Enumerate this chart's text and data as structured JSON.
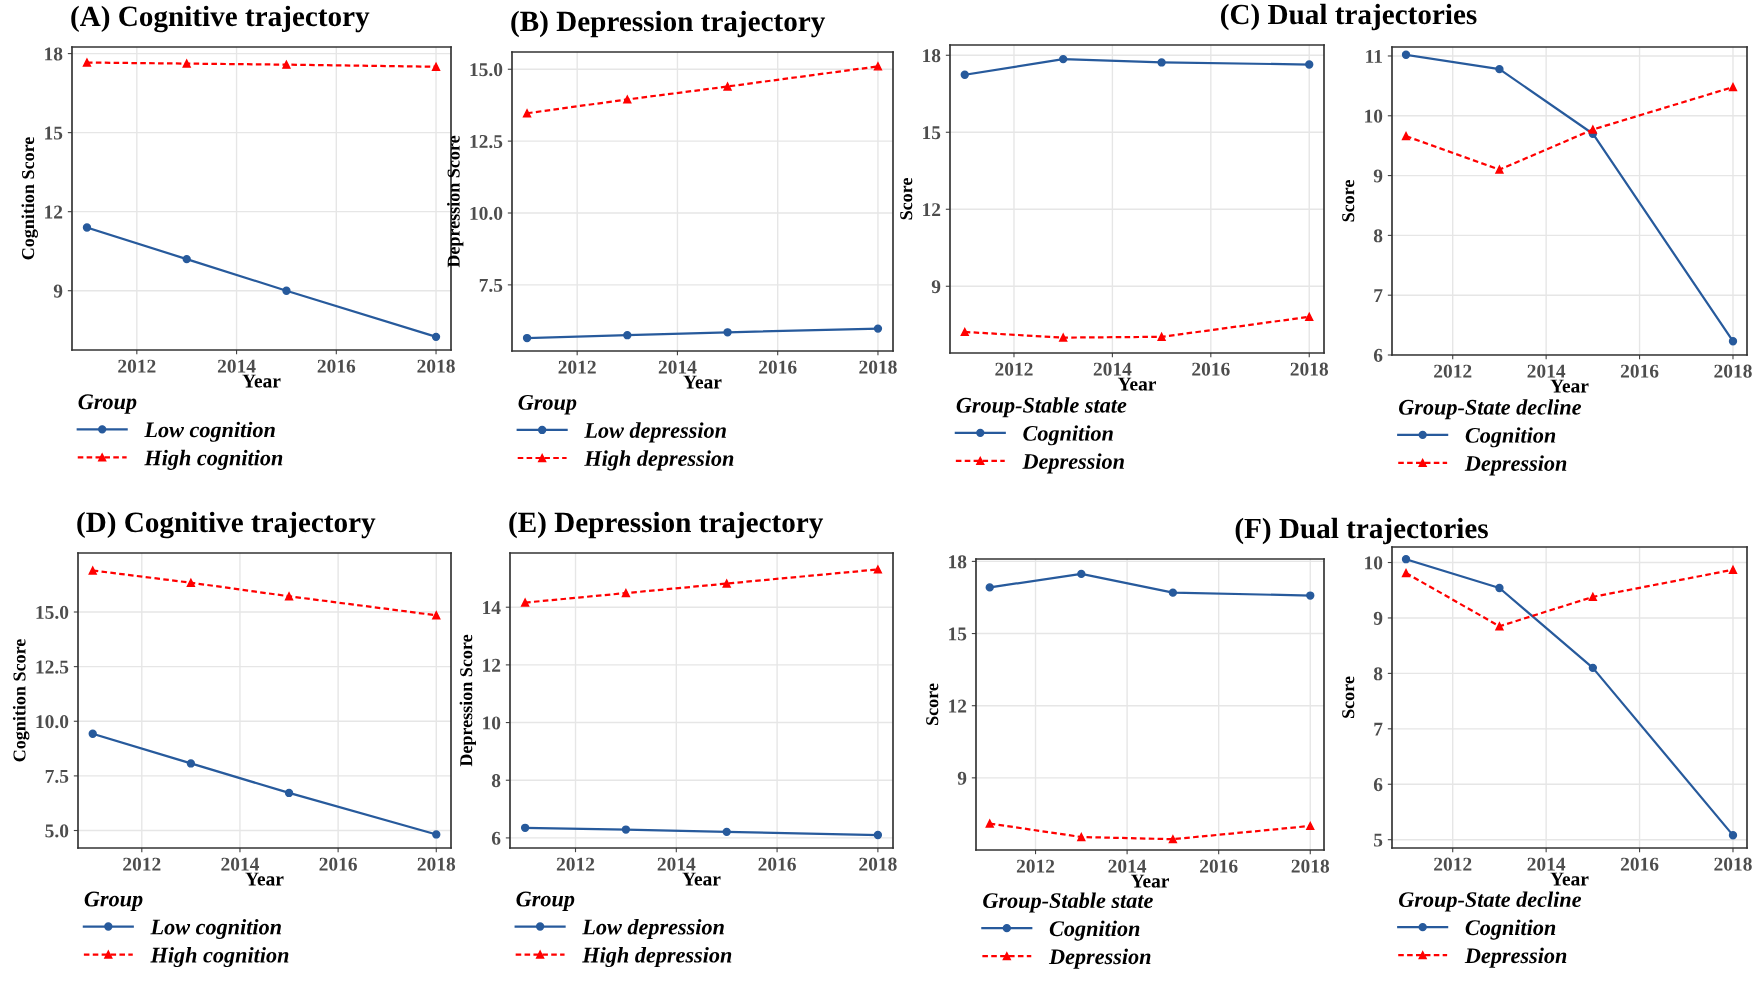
{
  "chart_data": [
    {
      "type": "line",
      "title": "(A) Cognitive trajectory",
      "xlabel": "Year",
      "ylabel": "Cognition Score",
      "legend_title": "Group",
      "legend": "bottom",
      "grid": true,
      "x": [
        2011,
        2013,
        2015,
        2018
      ],
      "xlim": [
        2010.7,
        2018.3
      ],
      "xticks": [
        2012,
        2014,
        2016,
        2018
      ],
      "ylim": [
        6.75,
        18.25
      ],
      "yticks": [
        9,
        12,
        15,
        18
      ],
      "series": [
        {
          "name": "Low cognition",
          "color": "#275a9c",
          "marker": "circle",
          "line_style": "solid",
          "values": [
            11.4,
            10.2,
            9.0,
            7.25
          ]
        },
        {
          "name": "High cognition",
          "color": "#ff0000",
          "marker": "triangle",
          "line_style": "dashed",
          "values": [
            17.66,
            17.62,
            17.58,
            17.5
          ]
        }
      ]
    },
    {
      "type": "line",
      "title": "(B) Depression trajectory",
      "xlabel": "Year",
      "ylabel": "Depression Score",
      "legend_title": "Group",
      "legend": "bottom",
      "grid": true,
      "x": [
        2011,
        2013,
        2015,
        2018
      ],
      "xlim": [
        2010.7,
        2018.3
      ],
      "xticks": [
        2012,
        2014,
        2016,
        2018
      ],
      "ylim": [
        5.2,
        15.6
      ],
      "yticks": [
        7.5,
        {
          "value": 10,
          "label": "10.0"
        },
        12.5,
        {
          "value": 15,
          "label": "15.0"
        }
      ],
      "series": [
        {
          "name": "Low depression",
          "color": "#275a9c",
          "marker": "circle",
          "line_style": "solid",
          "values": [
            5.65,
            5.75,
            5.85,
            5.98
          ]
        },
        {
          "name": "High depression",
          "color": "#ff0000",
          "marker": "triangle",
          "line_style": "dashed",
          "values": [
            13.47,
            13.95,
            14.4,
            15.1
          ]
        }
      ]
    },
    {
      "type": "line",
      "title": "(C) Dual trajectories",
      "xlabel": "Year",
      "ylabel": "Score",
      "legend_title": "Group-Stable state",
      "legend": "bottom",
      "grid": true,
      "x": [
        2011,
        2013,
        2015,
        2018
      ],
      "xlim": [
        2010.7,
        2018.3
      ],
      "xticks": [
        2012,
        2014,
        2016,
        2018
      ],
      "ylim": [
        6.4,
        18.4
      ],
      "yticks": [
        9,
        12,
        15,
        18
      ],
      "series": [
        {
          "name": "Cognition",
          "color": "#275a9c",
          "marker": "circle",
          "line_style": "solid",
          "values": [
            17.24,
            17.85,
            17.72,
            17.64
          ]
        },
        {
          "name": "Depression",
          "color": "#ff0000",
          "marker": "triangle",
          "line_style": "dashed",
          "values": [
            7.22,
            7.0,
            7.03,
            7.81
          ]
        }
      ]
    },
    {
      "type": "line",
      "xlabel": "Year",
      "ylabel": "Score",
      "legend_title": "Group-State decline",
      "legend": "bottom",
      "grid": true,
      "x": [
        2011,
        2013,
        2015,
        2018
      ],
      "xlim": [
        2010.7,
        2018.3
      ],
      "xticks": [
        2012,
        2014,
        2016,
        2018
      ],
      "ylim": [
        6.0,
        11.15
      ],
      "yticks": [
        6,
        7,
        8,
        9,
        10,
        11
      ],
      "series": [
        {
          "name": "Cognition",
          "color": "#275a9c",
          "marker": "circle",
          "line_style": "solid",
          "values": [
            11.02,
            10.78,
            9.7,
            6.23
          ]
        },
        {
          "name": "Depression",
          "color": "#ff0000",
          "marker": "triangle",
          "line_style": "dashed",
          "values": [
            9.66,
            9.1,
            9.77,
            10.48
          ]
        }
      ]
    },
    {
      "type": "line",
      "title": "(D) Cognitive trajectory",
      "xlabel": "Year",
      "ylabel": "Cognition Score",
      "legend_title": "Group",
      "legend": "bottom",
      "grid": true,
      "x": [
        2011,
        2013,
        2015,
        2018
      ],
      "xlim": [
        2010.7,
        2018.3
      ],
      "xticks": [
        2012,
        2014,
        2016,
        2018
      ],
      "ylim": [
        4.2,
        17.7
      ],
      "yticks": [
        {
          "value": 5,
          "label": "5.0"
        },
        7.5,
        {
          "value": 10,
          "label": "10.0"
        },
        12.5,
        {
          "value": 15,
          "label": "15.0"
        }
      ],
      "series": [
        {
          "name": "Low cognition",
          "color": "#275a9c",
          "marker": "circle",
          "line_style": "solid",
          "values": [
            9.43,
            8.07,
            6.72,
            4.82
          ]
        },
        {
          "name": "High cognition",
          "color": "#ff0000",
          "marker": "triangle",
          "line_style": "dashed",
          "values": [
            16.9,
            16.34,
            15.72,
            14.85
          ]
        }
      ]
    },
    {
      "type": "line",
      "title": "(E) Depression trajectory",
      "xlabel": "Year",
      "ylabel": "Depression Score",
      "legend_title": "Group",
      "legend": "bottom",
      "grid": true,
      "x": [
        2011,
        2013,
        2015,
        2018
      ],
      "xlim": [
        2010.7,
        2018.3
      ],
      "xticks": [
        2012,
        2014,
        2016,
        2018
      ],
      "ylim": [
        5.65,
        15.88
      ],
      "yticks": [
        6,
        8,
        10,
        12,
        14
      ],
      "series": [
        {
          "name": "Low depression",
          "color": "#275a9c",
          "marker": "circle",
          "line_style": "solid",
          "values": [
            6.35,
            6.29,
            6.21,
            6.1
          ]
        },
        {
          "name": "High depression",
          "color": "#ff0000",
          "marker": "triangle",
          "line_style": "dashed",
          "values": [
            14.16,
            14.49,
            14.82,
            15.31
          ]
        }
      ]
    },
    {
      "type": "line",
      "title": "(F) Dual trajectories",
      "xlabel": "Year",
      "ylabel": "Score",
      "legend_title": "Group-Stable state",
      "legend": "bottom",
      "grid": true,
      "x": [
        2011,
        2013,
        2015,
        2018
      ],
      "xlim": [
        2010.7,
        2018.3
      ],
      "xticks": [
        2012,
        2014,
        2016,
        2018
      ],
      "ylim": [
        6.0,
        18.1
      ],
      "yticks": [
        9,
        12,
        15,
        18
      ],
      "series": [
        {
          "name": "Cognition",
          "color": "#275a9c",
          "marker": "circle",
          "line_style": "solid",
          "values": [
            16.92,
            17.48,
            16.7,
            16.58
          ]
        },
        {
          "name": "Depression",
          "color": "#ff0000",
          "marker": "triangle",
          "line_style": "dashed",
          "values": [
            7.1,
            6.54,
            6.45,
            7.0
          ]
        }
      ]
    },
    {
      "type": "line",
      "xlabel": "Year",
      "ylabel": "Score",
      "legend_title": "Group-State decline",
      "legend": "bottom",
      "grid": true,
      "x": [
        2011,
        2013,
        2015,
        2018
      ],
      "xlim": [
        2010.7,
        2018.3
      ],
      "xticks": [
        2012,
        2014,
        2016,
        2018
      ],
      "ylim": [
        4.85,
        10.28
      ],
      "yticks": [
        5,
        6,
        7,
        8,
        9,
        10
      ],
      "series": [
        {
          "name": "Cognition",
          "color": "#275a9c",
          "marker": "circle",
          "line_style": "solid",
          "values": [
            10.06,
            9.54,
            8.1,
            5.08
          ]
        },
        {
          "name": "Depression",
          "color": "#ff0000",
          "marker": "triangle",
          "line_style": "dashed",
          "values": [
            9.81,
            8.85,
            9.38,
            9.87
          ]
        }
      ]
    }
  ]
}
